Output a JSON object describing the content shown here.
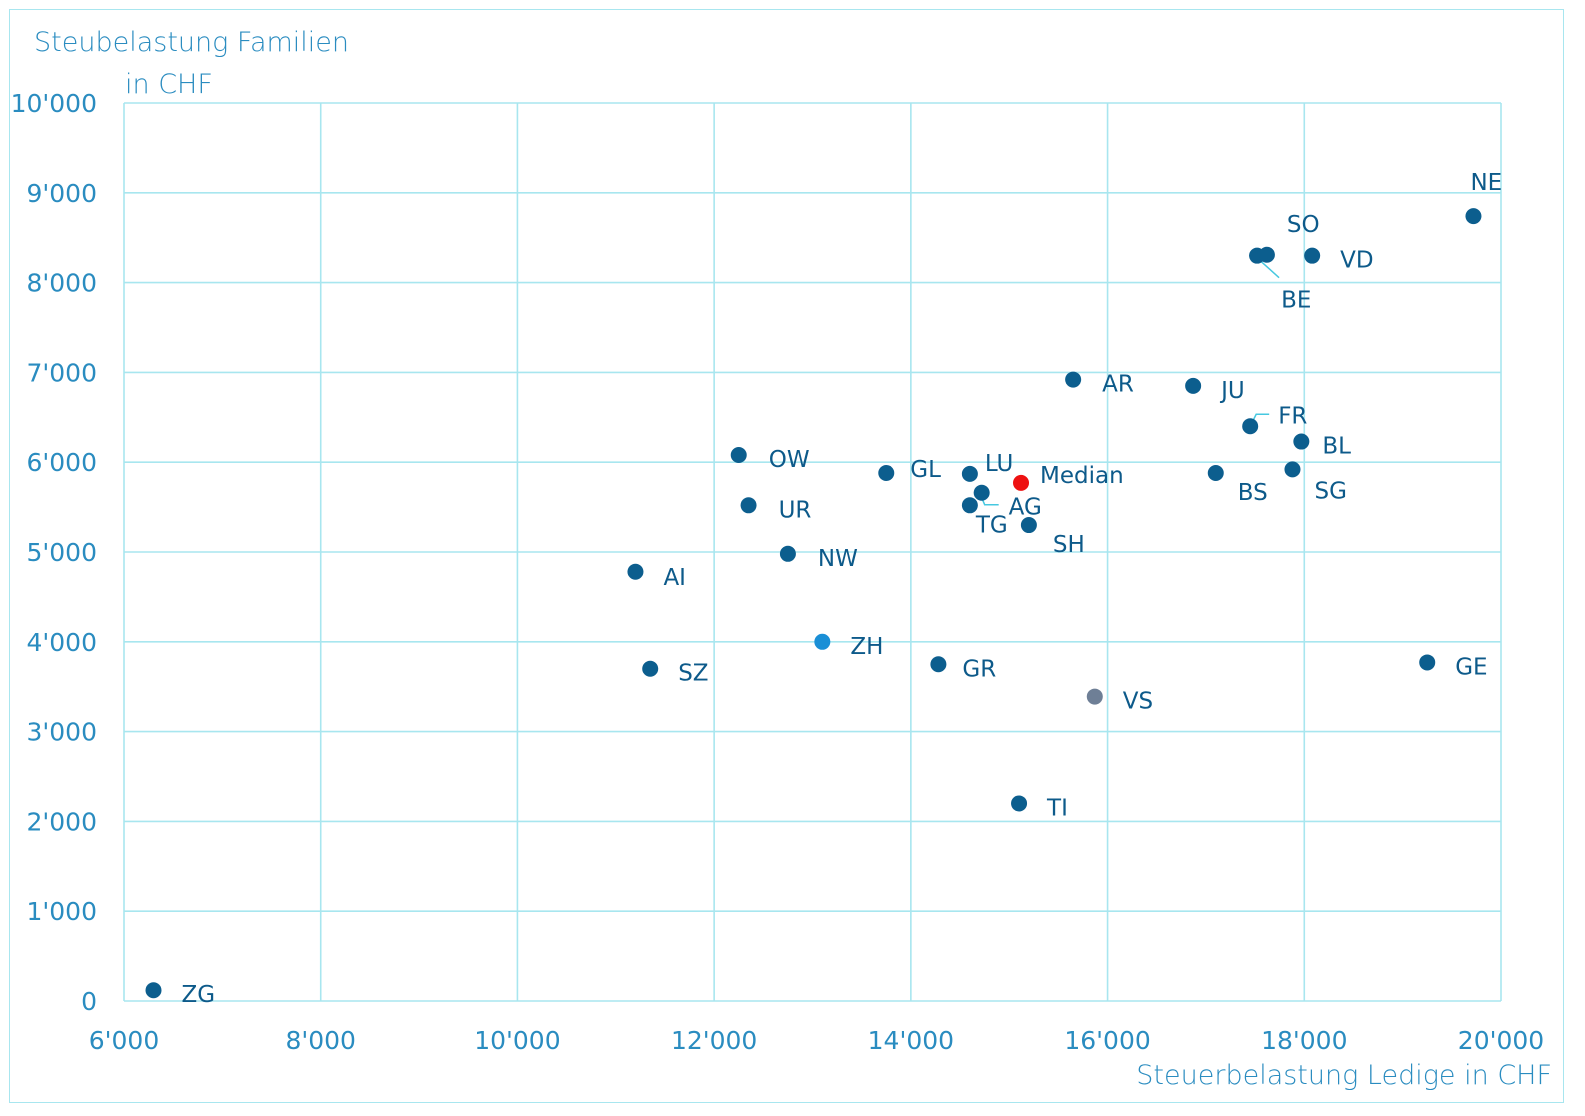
{
  "chart_data": {
    "type": "scatter",
    "title": "",
    "ylabel_line1": "Steubelastung Familien",
    "ylabel_line2": "in CHF",
    "xlabel": "Steuerbelastung Ledige in CHF",
    "xlim": [
      6000,
      20000
    ],
    "ylim": [
      0,
      10000
    ],
    "grid": true,
    "xticks": [
      6000,
      8000,
      10000,
      12000,
      14000,
      16000,
      18000,
      20000
    ],
    "xtick_labels": [
      "6'000",
      "8'000",
      "10'000",
      "12'000",
      "14'000",
      "16'000",
      "18'000",
      "20'000"
    ],
    "yticks": [
      0,
      1000,
      2000,
      3000,
      4000,
      5000,
      6000,
      7000,
      8000,
      9000,
      10000
    ],
    "ytick_labels": [
      "0",
      "1'000",
      "2'000",
      "3'000",
      "4'000",
      "5'000",
      "6'000",
      "7'000",
      "8'000",
      "9'000",
      "10'000"
    ],
    "colors": {
      "default": "#0c5e8e",
      "median": "#ee1111",
      "zh": "#1a8fd6",
      "vs": "#6e7f96",
      "label": "#0d5a8a",
      "leader": "#46c8e0",
      "grid": "#a8e6ef",
      "axis_text": "#2a8cc0"
    },
    "points": [
      {
        "label": "ZG",
        "x": 6300,
        "y": 120,
        "color": "default"
      },
      {
        "label": "AI",
        "x": 11200,
        "y": 4780,
        "color": "default"
      },
      {
        "label": "SZ",
        "x": 11350,
        "y": 3700,
        "color": "default"
      },
      {
        "label": "OW",
        "x": 12250,
        "y": 6080,
        "color": "default"
      },
      {
        "label": "UR",
        "x": 12350,
        "y": 5520,
        "color": "default"
      },
      {
        "label": "NW",
        "x": 12750,
        "y": 4980,
        "color": "default"
      },
      {
        "label": "ZH",
        "x": 13100,
        "y": 4000,
        "color": "zh"
      },
      {
        "label": "GL",
        "x": 13750,
        "y": 5880,
        "color": "default"
      },
      {
        "label": "GR",
        "x": 14280,
        "y": 3750,
        "color": "default"
      },
      {
        "label": "LU",
        "x": 14600,
        "y": 5870,
        "color": "default"
      },
      {
        "label": "TG",
        "x": 14600,
        "y": 5520,
        "color": "default"
      },
      {
        "label": "AG",
        "x": 14720,
        "y": 5660,
        "color": "default"
      },
      {
        "label": "TI",
        "x": 15100,
        "y": 2200,
        "color": "default"
      },
      {
        "label": "Median",
        "x": 15120,
        "y": 5770,
        "color": "median"
      },
      {
        "label": "SH",
        "x": 15200,
        "y": 5300,
        "color": "default"
      },
      {
        "label": "AR",
        "x": 15650,
        "y": 6920,
        "color": "default"
      },
      {
        "label": "VS",
        "x": 15870,
        "y": 3390,
        "color": "vs"
      },
      {
        "label": "JU",
        "x": 16870,
        "y": 6850,
        "color": "default"
      },
      {
        "label": "BS",
        "x": 17100,
        "y": 5880,
        "color": "default"
      },
      {
        "label": "FR",
        "x": 17450,
        "y": 6400,
        "color": "default"
      },
      {
        "label": "BE",
        "x": 17520,
        "y": 8300,
        "color": "default"
      },
      {
        "label": "SO",
        "x": 17620,
        "y": 8310,
        "color": "default"
      },
      {
        "label": "SG",
        "x": 17880,
        "y": 5920,
        "color": "default"
      },
      {
        "label": "BL",
        "x": 17970,
        "y": 6230,
        "color": "default"
      },
      {
        "label": "VD",
        "x": 18080,
        "y": 8300,
        "color": "default"
      },
      {
        "label": "GE",
        "x": 19250,
        "y": 3770,
        "color": "default"
      },
      {
        "label": "NE",
        "x": 19720,
        "y": 8740,
        "color": "default"
      }
    ]
  }
}
